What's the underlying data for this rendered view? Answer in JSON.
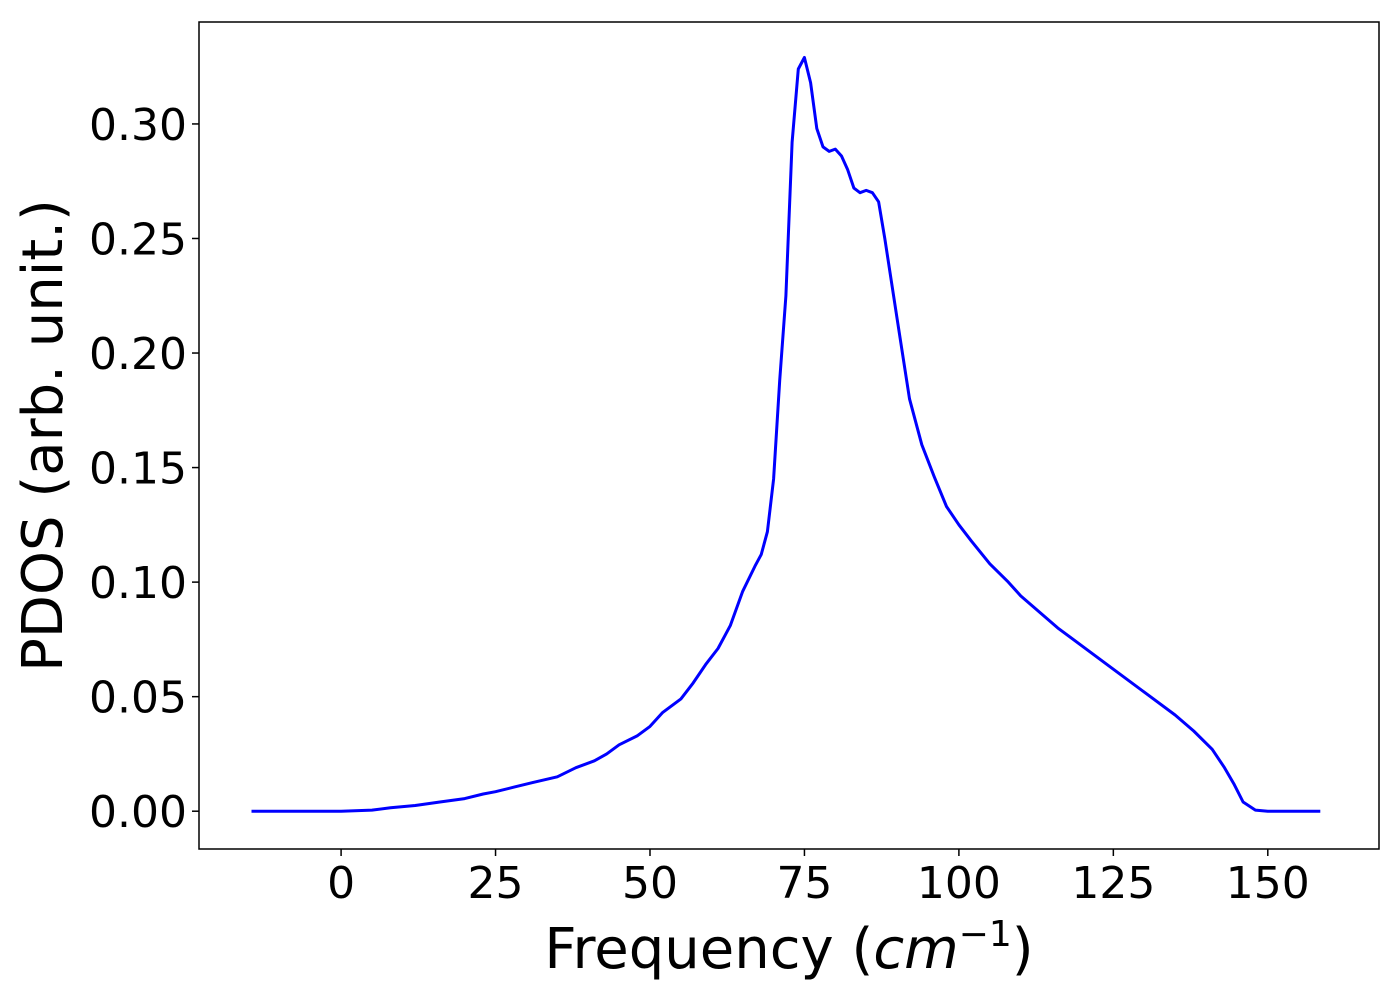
{
  "chart_data": {
    "type": "line",
    "xlabel": "Frequency",
    "xlabel_unit": "cm",
    "xlabel_unit_exponent": "−1",
    "ylabel": "PDOS (arb. unit.)",
    "xlim": [
      -23,
      168
    ],
    "ylim": [
      -0.0165,
      0.3445
    ],
    "xticks": [
      0,
      25,
      50,
      75,
      100,
      125,
      150
    ],
    "xtick_labels": [
      "0",
      "25",
      "50",
      "75",
      "100",
      "125",
      "150"
    ],
    "yticks": [
      0.0,
      0.05,
      0.1,
      0.15,
      0.2,
      0.25,
      0.3
    ],
    "ytick_labels": [
      "0.00",
      "0.05",
      "0.10",
      "0.15",
      "0.20",
      "0.25",
      "0.30"
    ],
    "grid": false,
    "series": [
      {
        "color": "#0000ff",
        "x": [
          -14.5,
          0,
          5,
          8,
          12,
          16,
          20,
          23,
          25,
          28,
          31,
          35,
          38,
          41,
          43,
          45,
          48,
          50,
          52,
          55,
          57,
          59,
          61,
          63,
          65,
          67,
          68,
          69,
          70,
          71,
          72,
          73,
          74,
          75,
          76,
          77,
          78,
          79,
          80,
          81,
          82,
          83,
          84,
          85,
          86,
          87,
          88,
          90,
          92,
          94,
          96,
          98,
          100,
          102,
          105,
          108,
          110,
          113,
          116,
          120,
          125,
          130,
          135,
          138,
          141,
          143,
          144.5,
          146,
          148,
          150,
          158.5
        ],
        "y": [
          0.0,
          0.0,
          0.0005,
          0.0015,
          0.0025,
          0.004,
          0.0055,
          0.0075,
          0.0085,
          0.0105,
          0.0125,
          0.015,
          0.019,
          0.022,
          0.025,
          0.029,
          0.033,
          0.037,
          0.043,
          0.049,
          0.056,
          0.064,
          0.071,
          0.081,
          0.096,
          0.107,
          0.112,
          0.122,
          0.145,
          0.188,
          0.225,
          0.292,
          0.324,
          0.329,
          0.318,
          0.298,
          0.29,
          0.288,
          0.289,
          0.286,
          0.28,
          0.272,
          0.27,
          0.271,
          0.27,
          0.266,
          0.25,
          0.215,
          0.18,
          0.16,
          0.146,
          0.133,
          0.125,
          0.118,
          0.108,
          0.1,
          0.094,
          0.087,
          0.08,
          0.072,
          0.062,
          0.052,
          0.042,
          0.035,
          0.027,
          0.019,
          0.012,
          0.004,
          0.0005,
          0.0,
          0.0
        ]
      }
    ]
  }
}
